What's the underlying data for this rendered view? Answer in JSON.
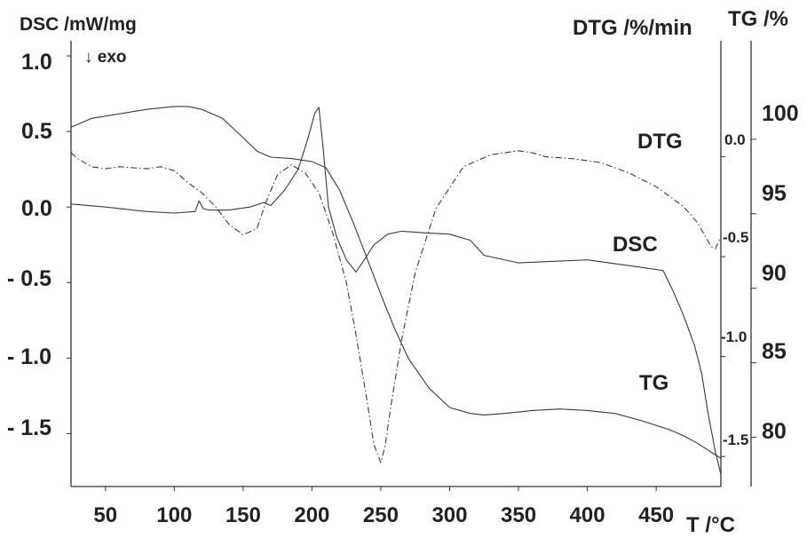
{
  "chart_data": {
    "type": "line",
    "y_left_title": "DSC /mW/mg",
    "exo_note": "↓ exo",
    "y_right1_title": "DTG /%/min",
    "y_right2_title": "TG /%",
    "x_axis_title": "T /°C",
    "xlim": [
      25,
      497
    ],
    "x_ticks": [
      "50",
      "100",
      "150",
      "200",
      "250",
      "300",
      "350",
      "400",
      "450"
    ],
    "x_tick_values": [
      50,
      100,
      150,
      200,
      250,
      300,
      350,
      400,
      450
    ],
    "dsc_axis": {
      "ylim": [
        -1.85,
        1.1
      ],
      "ticks": [
        "1.0",
        "0.5",
        "0.0",
        "- 0.5",
        "- 1.0",
        "- 1.5"
      ],
      "tick_values": [
        1.0,
        0.5,
        0.0,
        -0.5,
        -1.0,
        -1.5
      ]
    },
    "dtg_axis": {
      "ylim": [
        -1.65,
        0.58
      ],
      "ticks": [
        "0.0",
        "-0.5",
        "-1.0",
        "-1.5"
      ],
      "tick_values": [
        0.0,
        -0.5,
        -1.0,
        -1.5
      ]
    },
    "tg_axis": {
      "ylim": [
        76.7,
        106.6
      ],
      "ticks": [
        "100",
        "95",
        "90",
        "85",
        "80"
      ],
      "tick_values": [
        100,
        95,
        90,
        85,
        80
      ]
    },
    "series": [
      {
        "name": "DSC",
        "axis": "dsc",
        "style": "solid",
        "x": [
          25,
          50,
          80,
          100,
          115,
          118,
          121,
          125,
          140,
          155,
          165,
          170,
          180,
          190,
          197,
          202,
          205,
          208,
          212,
          218,
          225,
          232,
          238,
          245,
          255,
          265,
          280,
          300,
          315,
          325,
          350,
          400,
          440,
          455,
          462,
          470,
          478,
          483,
          488,
          493,
          497
        ],
        "y": [
          0.02,
          0.0,
          -0.03,
          -0.04,
          -0.03,
          0.04,
          -0.01,
          -0.02,
          -0.02,
          0.0,
          0.03,
          0.01,
          0.11,
          0.25,
          0.45,
          0.62,
          0.66,
          0.4,
          0.0,
          -0.2,
          -0.35,
          -0.43,
          -0.35,
          -0.25,
          -0.18,
          -0.16,
          -0.17,
          -0.18,
          -0.22,
          -0.32,
          -0.37,
          -0.35,
          -0.4,
          -0.42,
          -0.55,
          -0.72,
          -0.92,
          -1.1,
          -1.38,
          -1.62,
          -1.77
        ]
      },
      {
        "name": "DTG",
        "axis": "dtg",
        "style": "dashdot",
        "x": [
          25,
          30,
          40,
          50,
          60,
          80,
          90,
          100,
          110,
          120,
          130,
          140,
          150,
          160,
          167,
          175,
          185,
          195,
          205,
          215,
          225,
          232,
          240,
          245,
          250,
          253,
          258,
          265,
          275,
          290,
          310,
          330,
          350,
          360,
          370,
          390,
          410,
          430,
          450,
          470,
          480,
          490,
          493,
          497
        ],
        "y": [
          0.02,
          -0.01,
          -0.05,
          -0.06,
          -0.05,
          -0.06,
          -0.05,
          -0.07,
          -0.13,
          -0.18,
          -0.25,
          -0.34,
          -0.39,
          -0.36,
          -0.22,
          -0.09,
          -0.04,
          -0.08,
          -0.18,
          -0.38,
          -0.63,
          -0.89,
          -1.22,
          -1.44,
          -1.53,
          -1.45,
          -1.22,
          -0.92,
          -0.58,
          -0.26,
          -0.05,
          0.01,
          0.03,
          0.02,
          0.0,
          -0.01,
          -0.03,
          -0.08,
          -0.15,
          -0.25,
          -0.33,
          -0.45,
          -0.46,
          -0.4
        ]
      },
      {
        "name": "TG",
        "axis": "tg",
        "style": "solid",
        "x": [
          25,
          40,
          60,
          80,
          100,
          110,
          120,
          135,
          150,
          160,
          170,
          185,
          200,
          210,
          220,
          230,
          240,
          250,
          260,
          270,
          285,
          300,
          315,
          325,
          340,
          360,
          380,
          400,
          420,
          440,
          460,
          470,
          480,
          490,
          497
        ],
        "y": [
          100.8,
          101.4,
          101.7,
          102.0,
          102.2,
          102.2,
          102.0,
          101.4,
          100.1,
          99.2,
          98.8,
          98.7,
          98.5,
          98.1,
          96.6,
          94.4,
          92.0,
          89.6,
          87.3,
          85.3,
          83.3,
          82.0,
          81.6,
          81.5,
          81.6,
          81.8,
          81.9,
          81.8,
          81.6,
          81.1,
          80.5,
          80.1,
          79.6,
          79.0,
          78.6
        ]
      }
    ],
    "series_labels": [
      "DTG",
      "DSC",
      "TG"
    ]
  }
}
